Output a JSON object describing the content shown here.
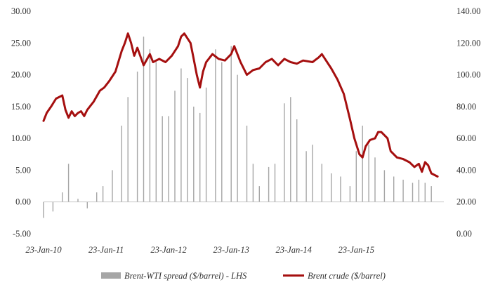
{
  "chart_data": {
    "type": "bar+line",
    "x_ticks": [
      "23-Jan-10",
      "23-Jan-11",
      "23-Jan-12",
      "23-Jan-13",
      "23-Jan-14",
      "23-Jan-15"
    ],
    "left_axis": {
      "ticks": [
        "-5.00",
        "0.00",
        "5.00",
        "10.00",
        "15.00",
        "20.00",
        "25.00",
        "30.00"
      ],
      "ylim": [
        -5,
        30
      ]
    },
    "right_axis": {
      "ticks": [
        "0.00",
        "20.00",
        "40.00",
        "60.00",
        "80.00",
        "100.00",
        "120.00",
        "140.00"
      ],
      "ylim": [
        0,
        140
      ]
    },
    "xlim": [
      2010.0,
      2016.4
    ],
    "grid": false,
    "legend_position": "bottom",
    "series": [
      {
        "name": "Brent-WTI spread ($/barrel) - LHS",
        "type": "bar",
        "axis": "left",
        "color": "#a6a6a6",
        "points": [
          [
            2010.0,
            -2.5
          ],
          [
            2010.15,
            -1.5
          ],
          [
            2010.3,
            1.5
          ],
          [
            2010.4,
            6.0
          ],
          [
            2010.55,
            0.5
          ],
          [
            2010.7,
            -1.0
          ],
          [
            2010.85,
            1.5
          ],
          [
            2010.95,
            2.5
          ],
          [
            2011.1,
            5.0
          ],
          [
            2011.25,
            12.0
          ],
          [
            2011.35,
            16.5
          ],
          [
            2011.5,
            20.5
          ],
          [
            2011.6,
            26.0
          ],
          [
            2011.7,
            24.0
          ],
          [
            2011.8,
            22.0
          ],
          [
            2011.9,
            13.5
          ],
          [
            2012.0,
            13.5
          ],
          [
            2012.1,
            17.5
          ],
          [
            2012.2,
            21.0
          ],
          [
            2012.3,
            19.5
          ],
          [
            2012.4,
            15.0
          ],
          [
            2012.5,
            14.0
          ],
          [
            2012.6,
            18.0
          ],
          [
            2012.75,
            24.0
          ],
          [
            2012.85,
            22.0
          ],
          [
            2013.0,
            24.5
          ],
          [
            2013.1,
            20.0
          ],
          [
            2013.25,
            12.0
          ],
          [
            2013.35,
            6.0
          ],
          [
            2013.45,
            2.5
          ],
          [
            2013.6,
            5.5
          ],
          [
            2013.7,
            6.0
          ],
          [
            2013.85,
            15.5
          ],
          [
            2013.95,
            16.5
          ],
          [
            2014.05,
            13.0
          ],
          [
            2014.2,
            8.0
          ],
          [
            2014.3,
            9.0
          ],
          [
            2014.45,
            6.0
          ],
          [
            2014.6,
            4.5
          ],
          [
            2014.75,
            4.0
          ],
          [
            2014.9,
            2.5
          ],
          [
            2015.0,
            8.0
          ],
          [
            2015.1,
            12.0
          ],
          [
            2015.2,
            9.0
          ],
          [
            2015.3,
            7.0
          ],
          [
            2015.45,
            5.0
          ],
          [
            2015.6,
            4.0
          ],
          [
            2015.75,
            3.5
          ],
          [
            2015.9,
            3.0
          ],
          [
            2016.0,
            3.5
          ],
          [
            2016.1,
            3.0
          ],
          [
            2016.2,
            2.5
          ]
        ]
      },
      {
        "name": "Brent crude ($/barrel)",
        "type": "line",
        "axis": "right",
        "color": "#a50f0f",
        "points": [
          [
            2010.0,
            71
          ],
          [
            2010.05,
            76
          ],
          [
            2010.12,
            80
          ],
          [
            2010.2,
            85
          ],
          [
            2010.3,
            87
          ],
          [
            2010.35,
            78
          ],
          [
            2010.4,
            73
          ],
          [
            2010.45,
            77
          ],
          [
            2010.5,
            74
          ],
          [
            2010.55,
            76
          ],
          [
            2010.6,
            77
          ],
          [
            2010.65,
            74
          ],
          [
            2010.7,
            78
          ],
          [
            2010.8,
            83
          ],
          [
            2010.9,
            90
          ],
          [
            2010.97,
            92
          ],
          [
            2011.05,
            96
          ],
          [
            2011.15,
            102
          ],
          [
            2011.25,
            115
          ],
          [
            2011.3,
            120
          ],
          [
            2011.35,
            126
          ],
          [
            2011.4,
            120
          ],
          [
            2011.45,
            112
          ],
          [
            2011.5,
            117
          ],
          [
            2011.6,
            106
          ],
          [
            2011.7,
            113
          ],
          [
            2011.75,
            108
          ],
          [
            2011.85,
            110
          ],
          [
            2011.95,
            108
          ],
          [
            2012.05,
            112
          ],
          [
            2012.15,
            118
          ],
          [
            2012.2,
            124
          ],
          [
            2012.25,
            126
          ],
          [
            2012.35,
            120
          ],
          [
            2012.4,
            110
          ],
          [
            2012.45,
            100
          ],
          [
            2012.5,
            92
          ],
          [
            2012.55,
            102
          ],
          [
            2012.6,
            108
          ],
          [
            2012.7,
            113
          ],
          [
            2012.8,
            110
          ],
          [
            2012.9,
            109
          ],
          [
            2013.0,
            113
          ],
          [
            2013.05,
            118
          ],
          [
            2013.15,
            108
          ],
          [
            2013.25,
            100
          ],
          [
            2013.35,
            103
          ],
          [
            2013.45,
            104
          ],
          [
            2013.55,
            108
          ],
          [
            2013.65,
            110
          ],
          [
            2013.75,
            106
          ],
          [
            2013.85,
            110
          ],
          [
            2013.95,
            108
          ],
          [
            2014.05,
            107
          ],
          [
            2014.15,
            109
          ],
          [
            2014.3,
            108
          ],
          [
            2014.4,
            111
          ],
          [
            2014.45,
            113
          ],
          [
            2014.5,
            110
          ],
          [
            2014.6,
            104
          ],
          [
            2014.7,
            97
          ],
          [
            2014.8,
            88
          ],
          [
            2014.9,
            72
          ],
          [
            2014.97,
            60
          ],
          [
            2015.05,
            50
          ],
          [
            2015.1,
            48
          ],
          [
            2015.15,
            55
          ],
          [
            2015.22,
            59
          ],
          [
            2015.3,
            60
          ],
          [
            2015.35,
            64
          ],
          [
            2015.4,
            64
          ],
          [
            2015.5,
            60
          ],
          [
            2015.55,
            52
          ],
          [
            2015.65,
            48
          ],
          [
            2015.75,
            47
          ],
          [
            2015.85,
            45
          ],
          [
            2015.93,
            42
          ],
          [
            2016.0,
            44
          ],
          [
            2016.05,
            39
          ],
          [
            2016.1,
            45
          ],
          [
            2016.15,
            43
          ],
          [
            2016.2,
            38
          ],
          [
            2016.3,
            36
          ]
        ]
      }
    ]
  }
}
